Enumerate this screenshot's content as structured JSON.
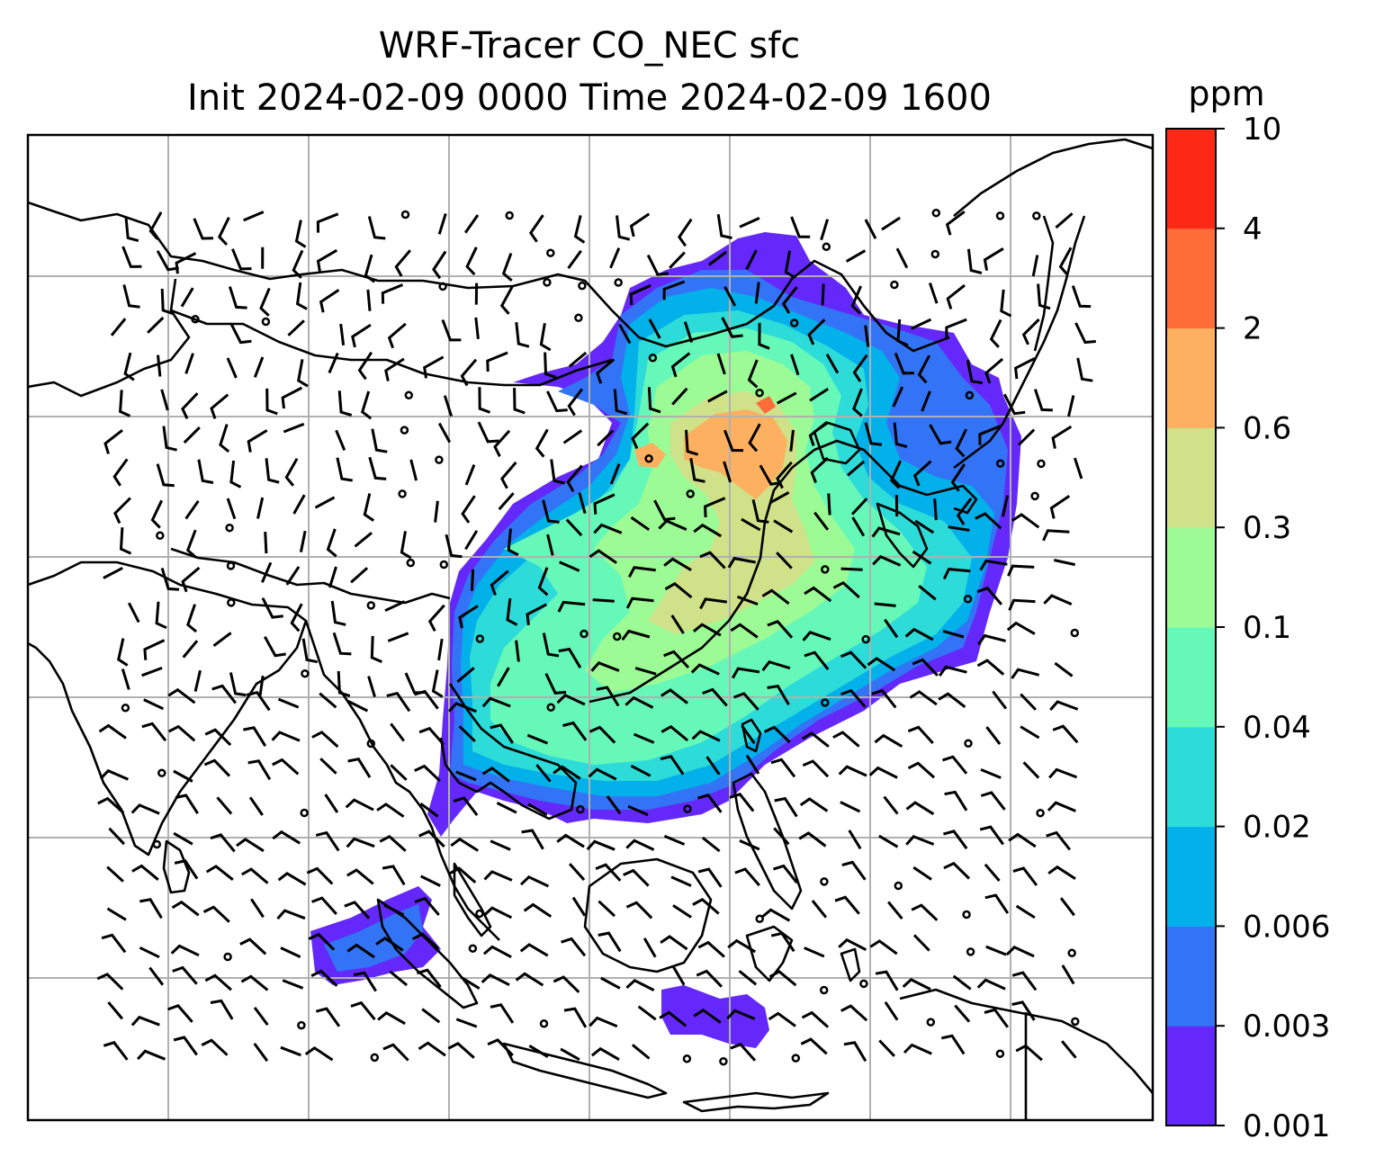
{
  "title": {
    "line1": "WRF-Tracer CO_NEC sfc",
    "line2": "Init 2024-02-09 0000 Time 2024-02-09 1600"
  },
  "colorbar": {
    "unit": "ppm",
    "levels": [
      "0.001",
      "0.003",
      "0.006",
      "0.02",
      "0.04",
      "0.1",
      "0.3",
      "0.6",
      "2",
      "4",
      "10"
    ],
    "colors": [
      "#6428fa",
      "#3274f5",
      "#03b1ea",
      "#2ddcd8",
      "#66f8b9",
      "#9cfb95",
      "#cfe189",
      "#fdb05f",
      "#fe6d38",
      "#fe2817"
    ]
  },
  "map": {
    "type": "filled-contour-with-wind-barbs",
    "projection": "Mercator",
    "gridlines": true,
    "coastlines": true,
    "field": "CO_NEC surface tracer concentration"
  }
}
